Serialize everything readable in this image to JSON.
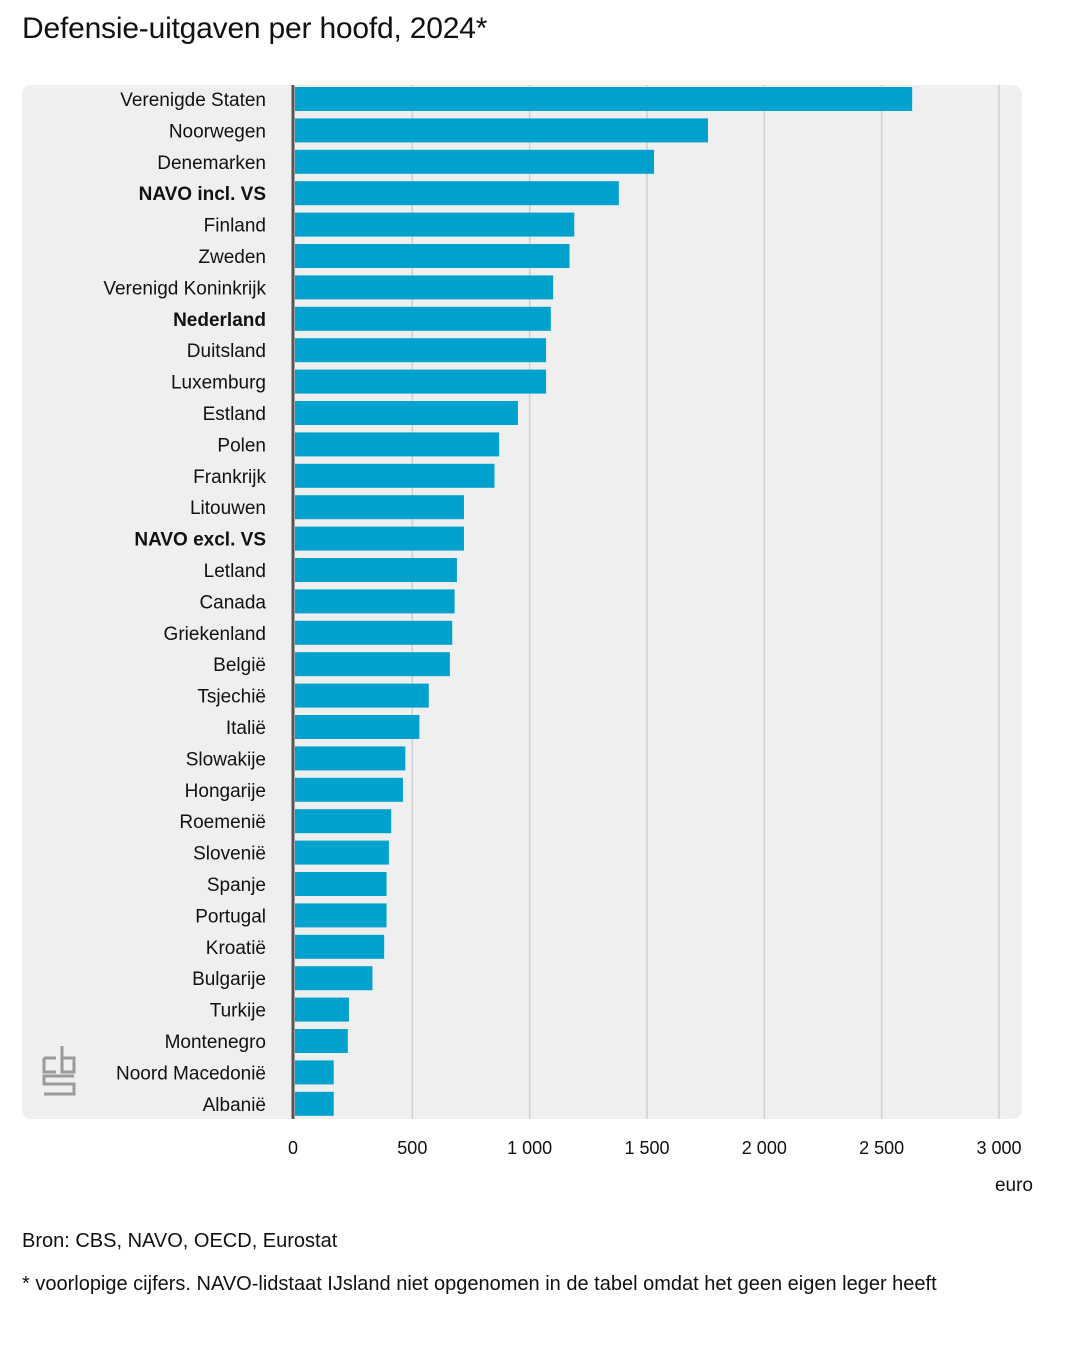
{
  "chart_data": {
    "type": "bar",
    "orientation": "horizontal",
    "title": "Defensie-uitgaven per hoofd, 2024*",
    "xlabel": "euro",
    "ylabel": "",
    "xlim": [
      0,
      3000
    ],
    "xticks": [
      0,
      500,
      1000,
      1500,
      2000,
      2500,
      3000
    ],
    "xtick_labels": [
      "0",
      "500",
      "1 000",
      "1 500",
      "2 000",
      "2 500",
      "3 000"
    ],
    "grid": true,
    "bar_color": "#00a1cd",
    "panel_color": "#efefef",
    "categories": [
      "Verenigde Staten",
      "Noorwegen",
      "Denemarken",
      "NAVO incl. VS",
      "Finland",
      "Zweden",
      "Verenigd Koninkrijk",
      "Nederland",
      "Duitsland",
      "Luxemburg",
      "Estland",
      "Polen",
      "Frankrijk",
      "Litouwen",
      "NAVO excl. VS",
      "Letland",
      "Canada",
      "Griekenland",
      "België",
      "Tsjechië",
      "Italië",
      "Slowakije",
      "Hongarije",
      "Roemenië",
      "Slovenië",
      "Spanje",
      "Portugal",
      "Kroatië",
      "Bulgarije",
      "Turkije",
      "Montenegro",
      "Noord Macedonië",
      "Albanië"
    ],
    "highlighted": [
      "NAVO incl. VS",
      "Nederland",
      "NAVO excl. VS"
    ],
    "values": [
      2630,
      1760,
      1530,
      1380,
      1190,
      1170,
      1100,
      1090,
      1070,
      1070,
      950,
      870,
      850,
      720,
      720,
      690,
      680,
      670,
      660,
      570,
      530,
      470,
      460,
      410,
      400,
      390,
      390,
      380,
      330,
      230,
      225,
      165,
      165
    ]
  },
  "footer": {
    "source": "Bron: CBS, NAVO, OECD, Eurostat",
    "note": "* voorlopige cijfers. NAVO-lidstaat IJsland niet opgenomen in de tabel omdat het geen eigen leger heeft"
  },
  "logo": {
    "icon": "cbs-logo-icon",
    "color": "#9a9a9a"
  }
}
